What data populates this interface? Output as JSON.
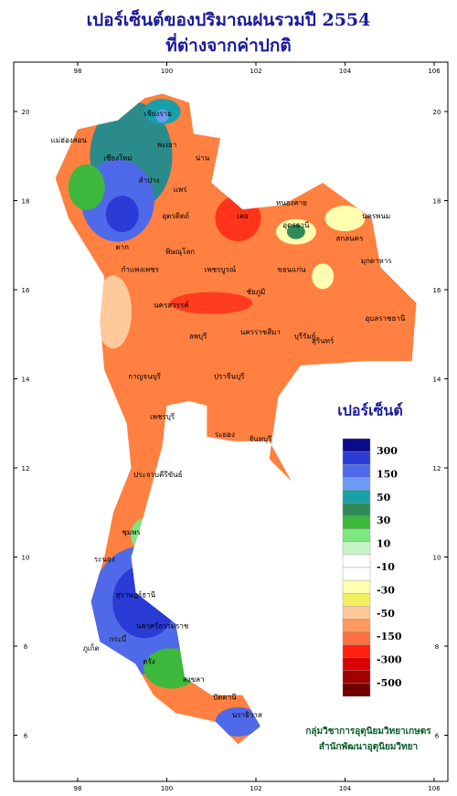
{
  "title": [
    "เปอร์เซ็นต์ของปริมาณฝนรวมปี 2554",
    "ที่ต่างจากค่าปกติ"
  ],
  "lon_ticks": [
    98,
    100,
    102,
    104,
    106
  ],
  "lat_ticks": [
    20,
    18,
    16,
    14,
    12,
    10,
    8,
    6
  ],
  "legend": {
    "title": "เปอร์เซ็นต์",
    "labels": [
      300,
      150,
      50,
      30,
      10,
      -10,
      -30,
      -50,
      -150,
      -300,
      -500
    ],
    "colors": [
      "#0a0a8c",
      "#2b3bd6",
      "#4f6ae8",
      "#6f9af5",
      "#18a0a8",
      "#2e8b57",
      "#3cb83c",
      "#7ee67e",
      "#c6f5c6",
      "#ffffff",
      "#ffffff",
      "#ffffb0",
      "#f3f060",
      "#ffc99a",
      "#ff9a60",
      "#ff7040",
      "#ff2010",
      "#d80000",
      "#a00000",
      "#700000"
    ]
  },
  "credit": [
    "กลุ่มวิชาการอุตุนิยมวิทยาเกษตร",
    "สำนักพัฒนาอุตุนิยมวิทยา"
  ],
  "province_labels": [
    "เชียงราย",
    "พะเยา",
    "น่าน",
    "แพร่",
    "ลำปาง",
    "เชียงใหม่",
    "แม่ฮ่องสอน",
    "อุตรดิตถ์",
    "ตาก",
    "กำแพงเพชร",
    "พิษณุโลก",
    "เลย",
    "หนองคาย",
    "อุดรธานี",
    "สกลนคร",
    "นครพนม",
    "มุกดาหาร",
    "ขอนแก่น",
    "เพชรบูรณ์",
    "ชัยภูมิ",
    "นครสวรรค์",
    "ลพบุรี",
    "นครราชสีมา",
    "บุรีรัมย์",
    "สุรินทร์",
    "อุบลราชธานี",
    "กาญจนบุรี",
    "ปราจีนบุรี",
    "ระยอง",
    "จันทบุรี",
    "เพชรบุรี",
    "ประจวบคีรีขันธ์",
    "ชุมพร",
    "ระนอง",
    "สุราษฎร์ธานี",
    "ภูเก็ต",
    "กระบี่",
    "นครศรีธรรมราช",
    "ตรัง",
    "สงขลา",
    "ปัตตานี",
    "นราธิวาส"
  ]
}
